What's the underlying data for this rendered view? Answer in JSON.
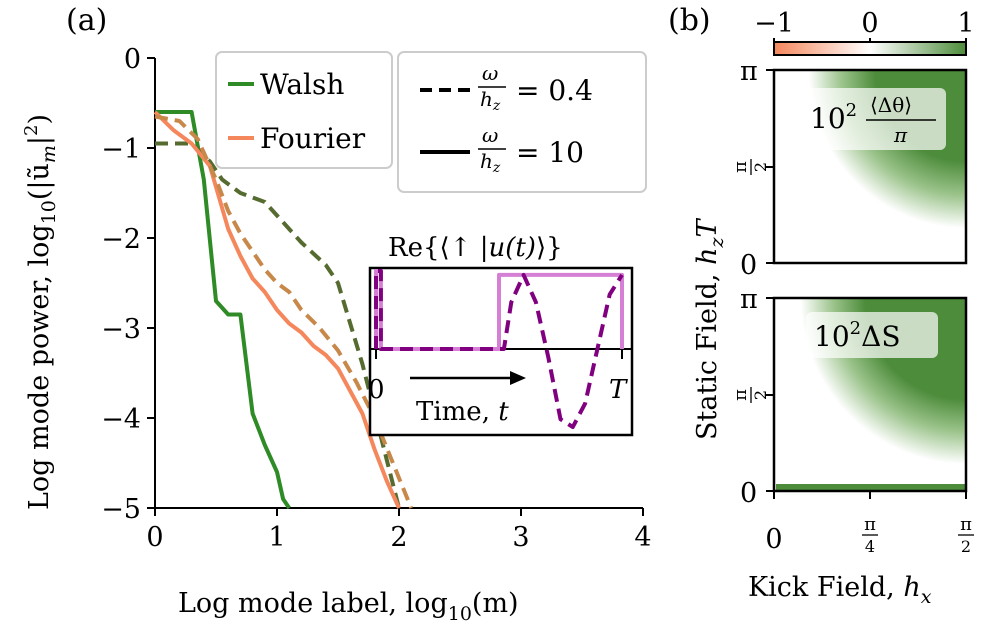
{
  "chart_data": [
    {
      "type": "line",
      "panel_label": "(a)",
      "xlabel_text": "Log mode label, log",
      "xlabel_sub": "10",
      "xlabel_arg": "(m)",
      "ylabel_text": "Log mode power, log",
      "ylabel_sub": "10",
      "ylabel_arg": "(|ũ",
      "ylabel_arg_sub": "m",
      "ylabel_arg_end": "|",
      "ylabel_arg_sup": "2",
      "ylabel_close": ")",
      "xlim": [
        0,
        4
      ],
      "ylim": [
        -5,
        0
      ],
      "xticks": [
        "0",
        "1",
        "2",
        "3",
        "4"
      ],
      "yticks": [
        "0",
        "−1",
        "−2",
        "−3",
        "−4",
        "−5"
      ],
      "legend_basis": [
        {
          "label": "Walsh",
          "color": "#2e8b26"
        },
        {
          "label": "Fourier",
          "color": "#f4875c"
        }
      ],
      "legend_ratio": [
        {
          "style": "dashed",
          "num": "ω",
          "den": "h",
          "den_sub": "z",
          "value": "= 0.4"
        },
        {
          "style": "solid",
          "num": "ω",
          "den": "h",
          "den_sub": "z",
          "value": "= 10"
        }
      ],
      "series": [
        {
          "name": "Walsh, ω/h_z = 10",
          "style": "solid",
          "color": "#2e8b26",
          "x": [
            0,
            0.3,
            0.4,
            0.5,
            0.6,
            0.7,
            0.8,
            0.9,
            1.0,
            1.05,
            1.1
          ],
          "y": [
            -0.6,
            -0.6,
            -1.35,
            -2.7,
            -2.85,
            -2.85,
            -3.95,
            -4.3,
            -4.6,
            -4.9,
            -5.0
          ]
        },
        {
          "name": "Walsh, ω/h_z = 0.4",
          "style": "dashed",
          "color": "#556b2f",
          "x": [
            0,
            0.3,
            0.45,
            0.55,
            0.7,
            0.8,
            0.9,
            1.0,
            1.2,
            1.4,
            1.5,
            1.7,
            1.85,
            2.0
          ],
          "y": [
            -0.95,
            -0.95,
            -1.15,
            -1.35,
            -1.5,
            -1.55,
            -1.6,
            -1.75,
            -2.05,
            -2.3,
            -2.5,
            -3.4,
            -4.2,
            -5.0
          ]
        },
        {
          "name": "Fourier, ω/h_z = 10",
          "style": "solid",
          "color": "#f4875c",
          "x": [
            0,
            0.15,
            0.3,
            0.45,
            0.6,
            0.7,
            0.8,
            0.9,
            1.0,
            1.1,
            1.2,
            1.3,
            1.4,
            1.5,
            1.6,
            1.7,
            1.8,
            1.9,
            2.0
          ],
          "y": [
            -0.6,
            -0.8,
            -0.95,
            -1.2,
            -1.9,
            -2.2,
            -2.45,
            -2.6,
            -2.8,
            -2.95,
            -3.05,
            -3.2,
            -3.3,
            -3.45,
            -3.7,
            -3.95,
            -4.35,
            -4.7,
            -5.0
          ]
        },
        {
          "name": "Fourier, ω/h_z = 0.4",
          "style": "dashed",
          "color": "#c8884a",
          "x": [
            0,
            0.2,
            0.35,
            0.5,
            0.6,
            0.7,
            0.8,
            0.9,
            1.0,
            1.1,
            1.2,
            1.35,
            1.5,
            1.65,
            1.8,
            1.95,
            2.1
          ],
          "y": [
            -0.65,
            -0.7,
            -0.9,
            -1.35,
            -1.7,
            -1.95,
            -2.15,
            -2.35,
            -2.5,
            -2.6,
            -2.8,
            -3.0,
            -3.25,
            -3.6,
            -4.0,
            -4.5,
            -5.0
          ]
        }
      ]
    },
    {
      "type": "line",
      "role": "inset",
      "title_pre": "Re{⟨↑ |",
      "title_func": "u(t)",
      "title_post": "⟩}",
      "xlabel": "Time, ",
      "xlabel_var": "t",
      "xticks": [
        "0",
        "T"
      ],
      "xlim": [
        0,
        1
      ],
      "ylim": [
        -1,
        1
      ],
      "series": [
        {
          "name": "Walsh component",
          "style": "solid",
          "color": "#d580d5",
          "x": [
            0,
            0.0,
            0.02,
            0.02,
            0.5,
            0.5,
            0.55,
            1.0,
            1.0
          ],
          "y": [
            0,
            1,
            1,
            0,
            0,
            0.95,
            0.95,
            0.95,
            0
          ]
        },
        {
          "name": "Fourier component",
          "style": "dashed",
          "color": "#800080",
          "x": [
            0,
            0.0,
            0.02,
            0.02,
            0.52,
            0.55,
            0.6,
            0.65,
            0.7,
            0.75,
            0.8,
            0.85,
            0.9,
            0.95,
            1.0
          ],
          "y": [
            0,
            1,
            1,
            0,
            0,
            0.6,
            0.95,
            0.6,
            -0.1,
            -0.9,
            -1.0,
            -0.7,
            0.0,
            0.7,
            0.95
          ]
        }
      ]
    },
    {
      "type": "heatmap",
      "panel_label": "(b)",
      "colorbar_ticks": [
        "−1",
        "0",
        "1"
      ],
      "colorbar_range": [
        -1,
        1
      ],
      "colors": {
        "neg": "#f4875c",
        "mid": "#ffffff",
        "pos": "#4d8c3b"
      },
      "ylabel_pre": "Static Field, ",
      "ylabel_var": "h",
      "ylabel_sub": "z",
      "ylabel_post": "T",
      "xlabel": "Kick Field, ",
      "xlabel_var": "h",
      "xlabel_sub": "x",
      "xticks": [
        "0",
        "π/4",
        "π/2"
      ],
      "yticks": [
        "0",
        "π/2",
        "π"
      ],
      "panels": [
        {
          "label_pre": "10",
          "label_sup": "2",
          "label_num": "⟨Δθ⟩",
          "label_den": "π"
        },
        {
          "label_pre": "10",
          "label_sup": "2",
          "label_body": "ΔS"
        }
      ]
    }
  ]
}
